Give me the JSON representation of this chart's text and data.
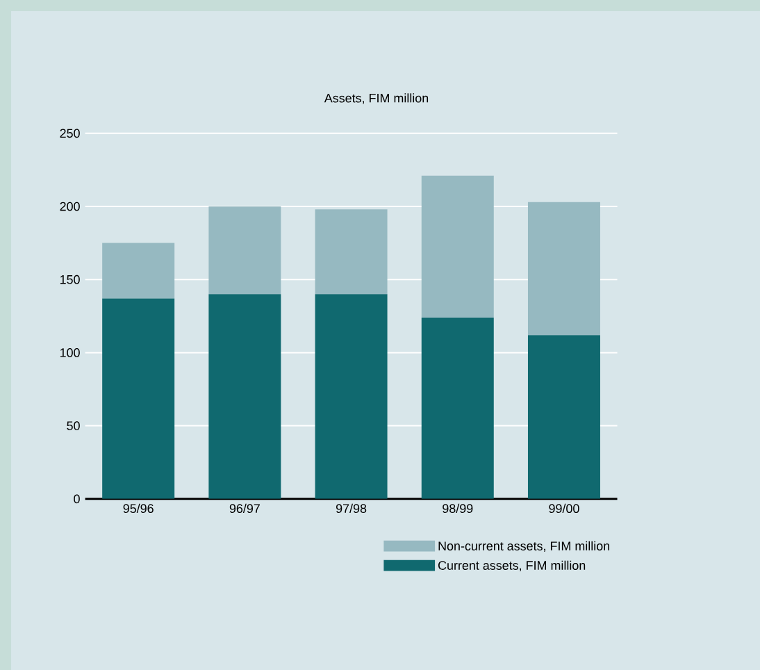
{
  "chart_data": {
    "type": "bar",
    "stacked": true,
    "title": "Assets, FIM million",
    "categories": [
      "95/96",
      "96/97",
      "97/98",
      "98/99",
      "99/00"
    ],
    "series": [
      {
        "name": "Current assets, FIM million",
        "color": "#10696f",
        "values": [
          137,
          140,
          140,
          124,
          112
        ]
      },
      {
        "name": "Non-current assets, FIM million",
        "color": "#96b9c1",
        "values": [
          38,
          60,
          58,
          97,
          91
        ]
      }
    ],
    "ylim": [
      0,
      250
    ],
    "yticks": [
      0,
      50,
      100,
      150,
      200,
      250
    ],
    "grid": "y",
    "legend": "bottom right"
  }
}
